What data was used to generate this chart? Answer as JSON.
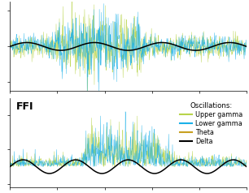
{
  "upper_gamma_color": "#b8d44a",
  "lower_gamma_color": "#1ab0e8",
  "theta_color": "#c8a020",
  "delta_color": "#000000",
  "background_color": "#ffffff",
  "ffi_label": "FFI",
  "legend_title": "Oscillations:",
  "legend_entries": [
    "Upper gamma",
    "Lower gamma",
    "Theta",
    "Delta"
  ],
  "n_points": 800,
  "seed_control": 42,
  "seed_ffi": 99,
  "figsize": [
    3.06,
    2.38
  ],
  "dpi": 100
}
